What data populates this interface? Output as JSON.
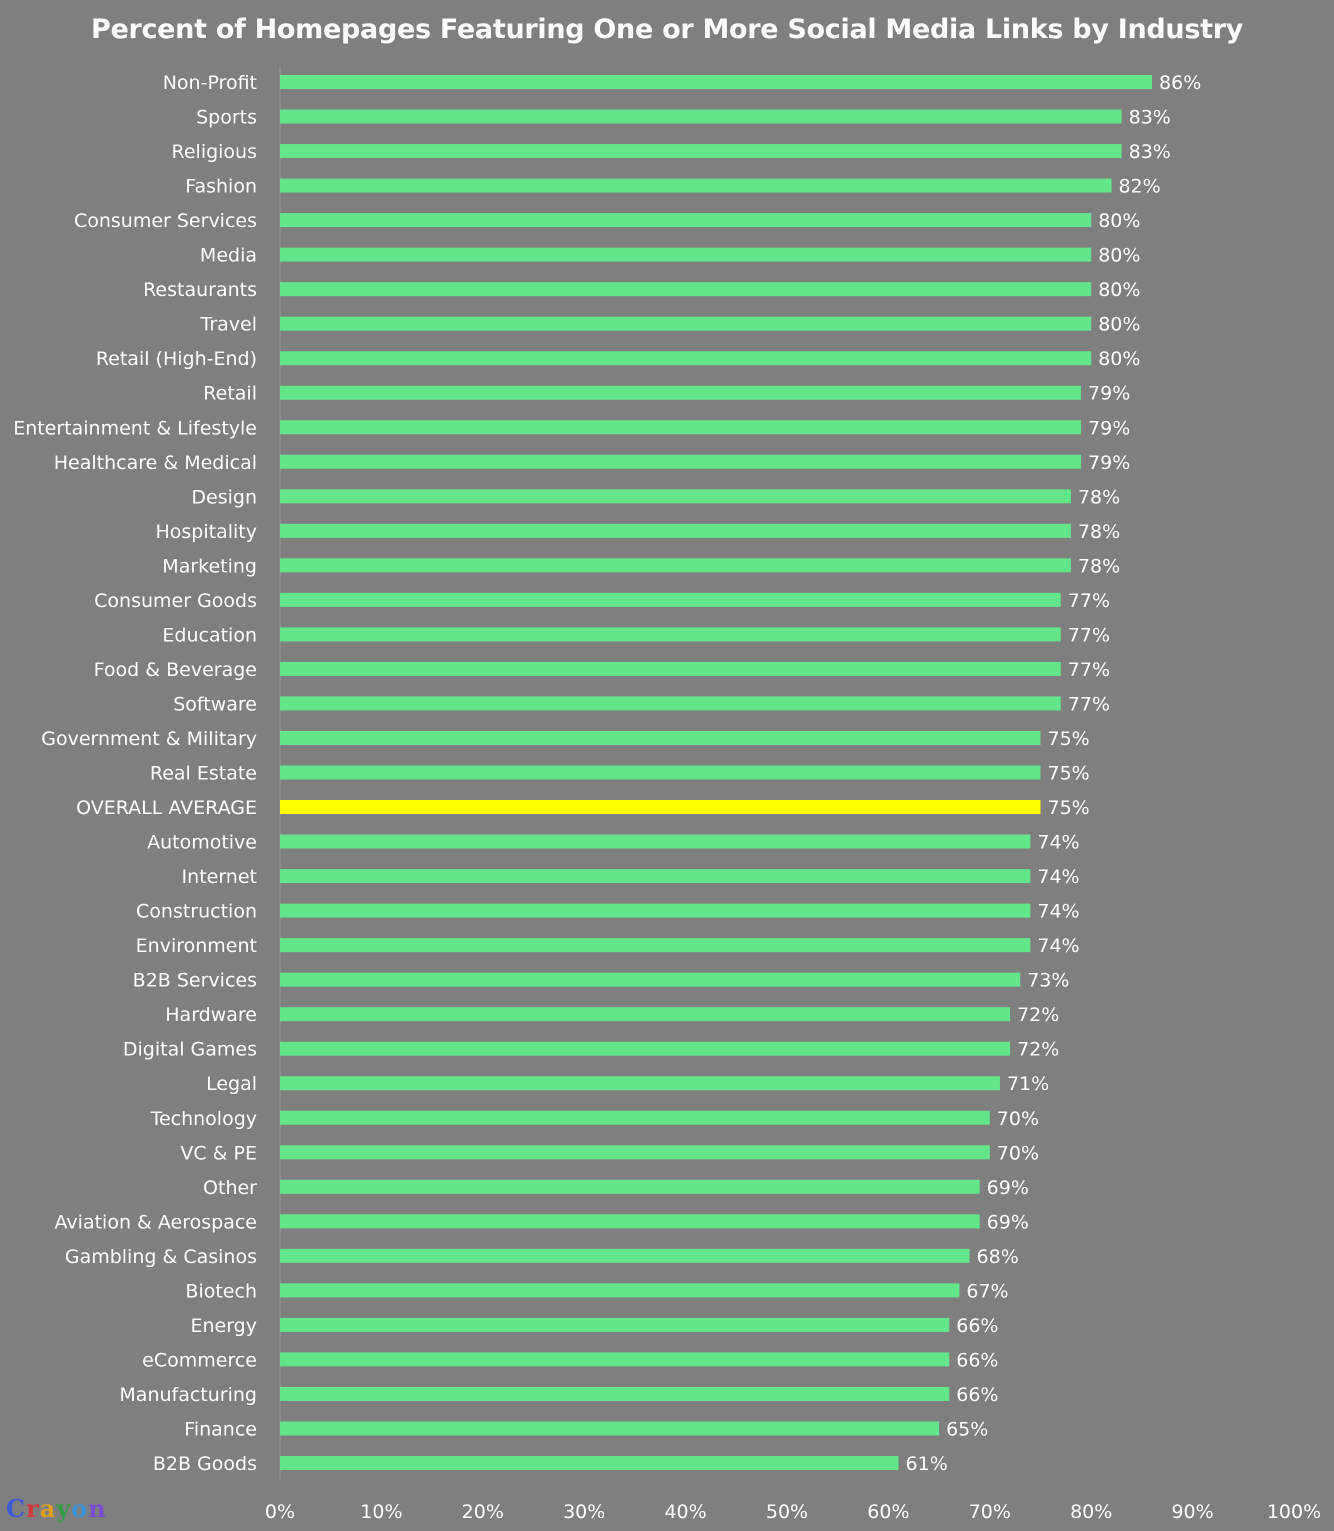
{
  "chart_data": {
    "type": "bar",
    "orientation": "horizontal",
    "title": "Percent of Homepages Featuring One or More Social Media Links by Industry",
    "xlim": [
      0,
      100
    ],
    "x_ticks": [
      "0%",
      "10%",
      "20%",
      "30%",
      "40%",
      "50%",
      "60%",
      "70%",
      "80%",
      "90%",
      "100%"
    ],
    "categories": [
      "Non-Profit",
      "Sports",
      "Religious",
      "Fashion",
      "Consumer Services",
      "Media",
      "Restaurants",
      "Travel",
      "Retail (High-End)",
      "Retail",
      "Entertainment & Lifestyle",
      "Healthcare & Medical",
      "Design",
      "Hospitality",
      "Marketing",
      "Consumer Goods",
      "Education",
      "Food & Beverage",
      "Software",
      "Government & Military",
      "Real Estate",
      "OVERALL AVERAGE",
      "Automotive",
      "Internet",
      "Construction",
      "Environment",
      "B2B Services",
      "Hardware",
      "Digital Games",
      "Legal",
      "Technology",
      "VC & PE",
      "Other",
      "Aviation & Aerospace",
      "Gambling & Casinos",
      "Biotech",
      "Energy",
      "eCommerce",
      "Manufacturing",
      "Finance",
      "B2B Goods"
    ],
    "values": [
      86,
      83,
      83,
      82,
      80,
      80,
      80,
      80,
      80,
      79,
      79,
      79,
      78,
      78,
      78,
      77,
      77,
      77,
      77,
      75,
      75,
      75,
      74,
      74,
      74,
      74,
      73,
      72,
      72,
      71,
      70,
      70,
      69,
      69,
      68,
      67,
      66,
      66,
      66,
      65,
      61
    ],
    "value_labels": [
      "86%",
      "83%",
      "83%",
      "82%",
      "80%",
      "80%",
      "80%",
      "80%",
      "80%",
      "79%",
      "79%",
      "79%",
      "78%",
      "78%",
      "78%",
      "77%",
      "77%",
      "77%",
      "77%",
      "75%",
      "75%",
      "75%",
      "74%",
      "74%",
      "74%",
      "74%",
      "73%",
      "72%",
      "72%",
      "71%",
      "70%",
      "70%",
      "69%",
      "69%",
      "68%",
      "67%",
      "66%",
      "66%",
      "66%",
      "65%",
      "61%"
    ],
    "highlight_category": "OVERALL AVERAGE",
    "grid": false,
    "colors": {
      "background": "#7f7f7f",
      "bar": "#63e68a",
      "highlight_bar": "#ffff00",
      "text": "#ffffff",
      "axis": "#9a9a9a"
    }
  },
  "watermark": {
    "letters": [
      "C",
      "r",
      "a",
      "y",
      "o",
      "n"
    ]
  }
}
